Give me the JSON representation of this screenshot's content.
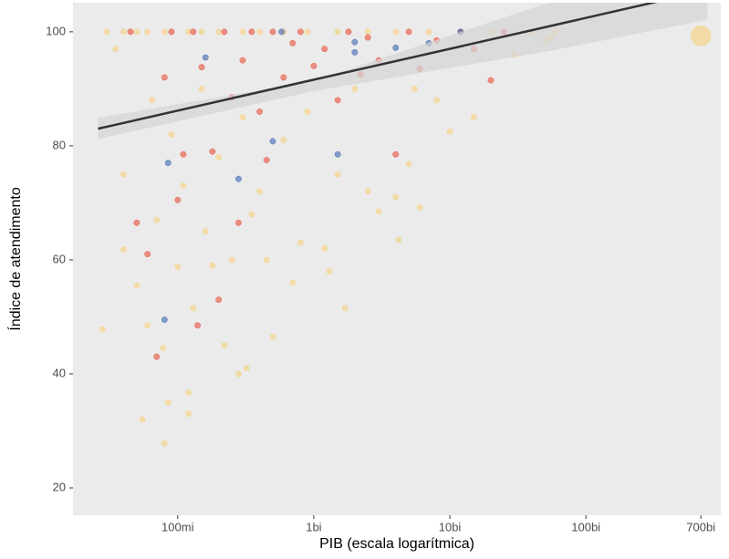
{
  "chart_data": {
    "type": "scatter",
    "x_label": "PIB (escala logarítmica)",
    "y_label": "Índice de atendimento",
    "xscale": "log",
    "grid": false,
    "xlim": [
      17000000.0,
      980000000000.0
    ],
    "ylim": [
      15.2,
      105.1
    ],
    "xticks": [
      {
        "value": 100000000.0,
        "label": "100mi"
      },
      {
        "value": 1000000000.0,
        "label": "1bi"
      },
      {
        "value": 10000000000.0,
        "label": "10bi"
      },
      {
        "value": 100000000000.0,
        "label": "100bi"
      },
      {
        "value": 700000000000.0,
        "label": "700bi"
      }
    ],
    "yticks": [
      20,
      40,
      60,
      80,
      100
    ],
    "series": [
      {
        "color": "#f6d48a",
        "x": [
          30000000.0,
          40000000.0,
          50000000.0,
          60000000.0,
          80000000.0,
          120000000.0,
          150000000.0,
          200000000.0,
          300000000.0,
          400000000.0,
          600000000.0,
          900000000.0,
          1500000000.0,
          2500000000.0,
          4000000000.0,
          7000000000.0,
          12000000000.0,
          20000000000.0,
          40000000000.0,
          60000000000.0,
          700000000000.0,
          28000000.0,
          35000000.0,
          40000000.0,
          40000000.0,
          50000000.0,
          55000000.0,
          60000000.0,
          65000000.0,
          70000000.0,
          78000000.0,
          80000000.0,
          85000000.0,
          90000000.0,
          100000000.0,
          110000000.0,
          120000000.0,
          120000000.0,
          130000000.0,
          150000000.0,
          160000000.0,
          180000000.0,
          200000000.0,
          220000000.0,
          250000000.0,
          280000000.0,
          300000000.0,
          320000000.0,
          350000000.0,
          400000000.0,
          450000000.0,
          500000000.0,
          600000000.0,
          700000000.0,
          800000000.0,
          900000000.0,
          1200000000.0,
          1300000000.0,
          1500000000.0,
          1700000000.0,
          2000000000.0,
          2500000000.0,
          3000000000.0,
          4000000000.0,
          4200000000.0,
          5000000000.0,
          5500000000.0,
          6000000000.0,
          8000000000.0,
          10000000000.0,
          15000000000.0,
          30000000000.0,
          50000000000.0,
          55000000000.0
        ],
        "values": [
          100,
          100,
          100,
          100,
          100,
          100,
          100,
          100,
          100,
          100,
          100,
          100,
          100,
          100,
          100,
          100,
          100,
          100,
          100,
          100,
          99.3,
          47.8,
          97,
          75,
          61.8,
          55.5,
          32,
          48.5,
          88,
          67,
          44.5,
          27.8,
          35,
          82,
          58.8,
          73,
          36.7,
          33,
          51.5,
          90,
          65,
          59,
          78,
          45,
          60,
          40,
          85,
          41,
          68,
          72,
          60,
          46.5,
          81,
          56,
          63,
          86,
          62,
          58,
          75,
          51.5,
          90,
          72,
          68.5,
          71,
          63.5,
          76.8,
          90,
          69.2,
          88,
          82.5,
          85,
          96,
          98.5,
          99
        ]
      },
      {
        "color": "#ea5a48",
        "x": [
          45000000.0,
          50000000.0,
          60000000.0,
          70000000.0,
          80000000.0,
          90000000.0,
          100000000.0,
          110000000.0,
          130000000.0,
          140000000.0,
          150000000.0,
          180000000.0,
          200000000.0,
          220000000.0,
          250000000.0,
          280000000.0,
          300000000.0,
          350000000.0,
          400000000.0,
          450000000.0,
          500000000.0,
          600000000.0,
          700000000.0,
          800000000.0,
          1000000000.0,
          1200000000.0,
          1500000000.0,
          1800000000.0,
          2200000000.0,
          2500000000.0,
          3000000000.0,
          4000000000.0,
          5000000000.0,
          6000000000.0,
          8000000000.0,
          12000000000.0,
          15000000000.0,
          20000000000.0,
          25000000000.0
        ],
        "values": [
          100,
          66.5,
          61,
          43,
          92,
          100,
          70.5,
          78.5,
          100,
          48.5,
          93.8,
          79,
          53,
          100,
          88.5,
          66.5,
          95,
          100,
          86,
          77.5,
          100,
          92,
          98,
          100,
          94,
          97,
          88,
          100,
          92.5,
          99,
          95,
          78.5,
          100,
          93.5,
          98.5,
          100,
          97,
          91.5,
          100
        ]
      },
      {
        "color": "#4a6fb5",
        "x": [
          80000000.0,
          85000000.0,
          160000000.0,
          280000000.0,
          500000000.0,
          580000000.0,
          1500000000.0,
          2000000000.0,
          2000000000.0,
          4000000000.0,
          7000000000.0,
          12000000000.0
        ],
        "values": [
          49.5,
          77,
          95.5,
          74.2,
          80.8,
          100,
          78.5,
          98.2,
          96.4,
          97.2,
          98,
          100
        ]
      }
    ],
    "trend": {
      "color": "#333333",
      "band_color": "#d4d4d4",
      "x": [
        26000000.0,
        1000000000.0,
        50000000000.0,
        780000000000.0
      ],
      "values": [
        83,
        91.6,
        100.8,
        107.3
      ],
      "lower": [
        81.2,
        89.6,
        96.5,
        102.1
      ],
      "upper": [
        84.9,
        91.4,
        104.9,
        110
      ]
    }
  }
}
